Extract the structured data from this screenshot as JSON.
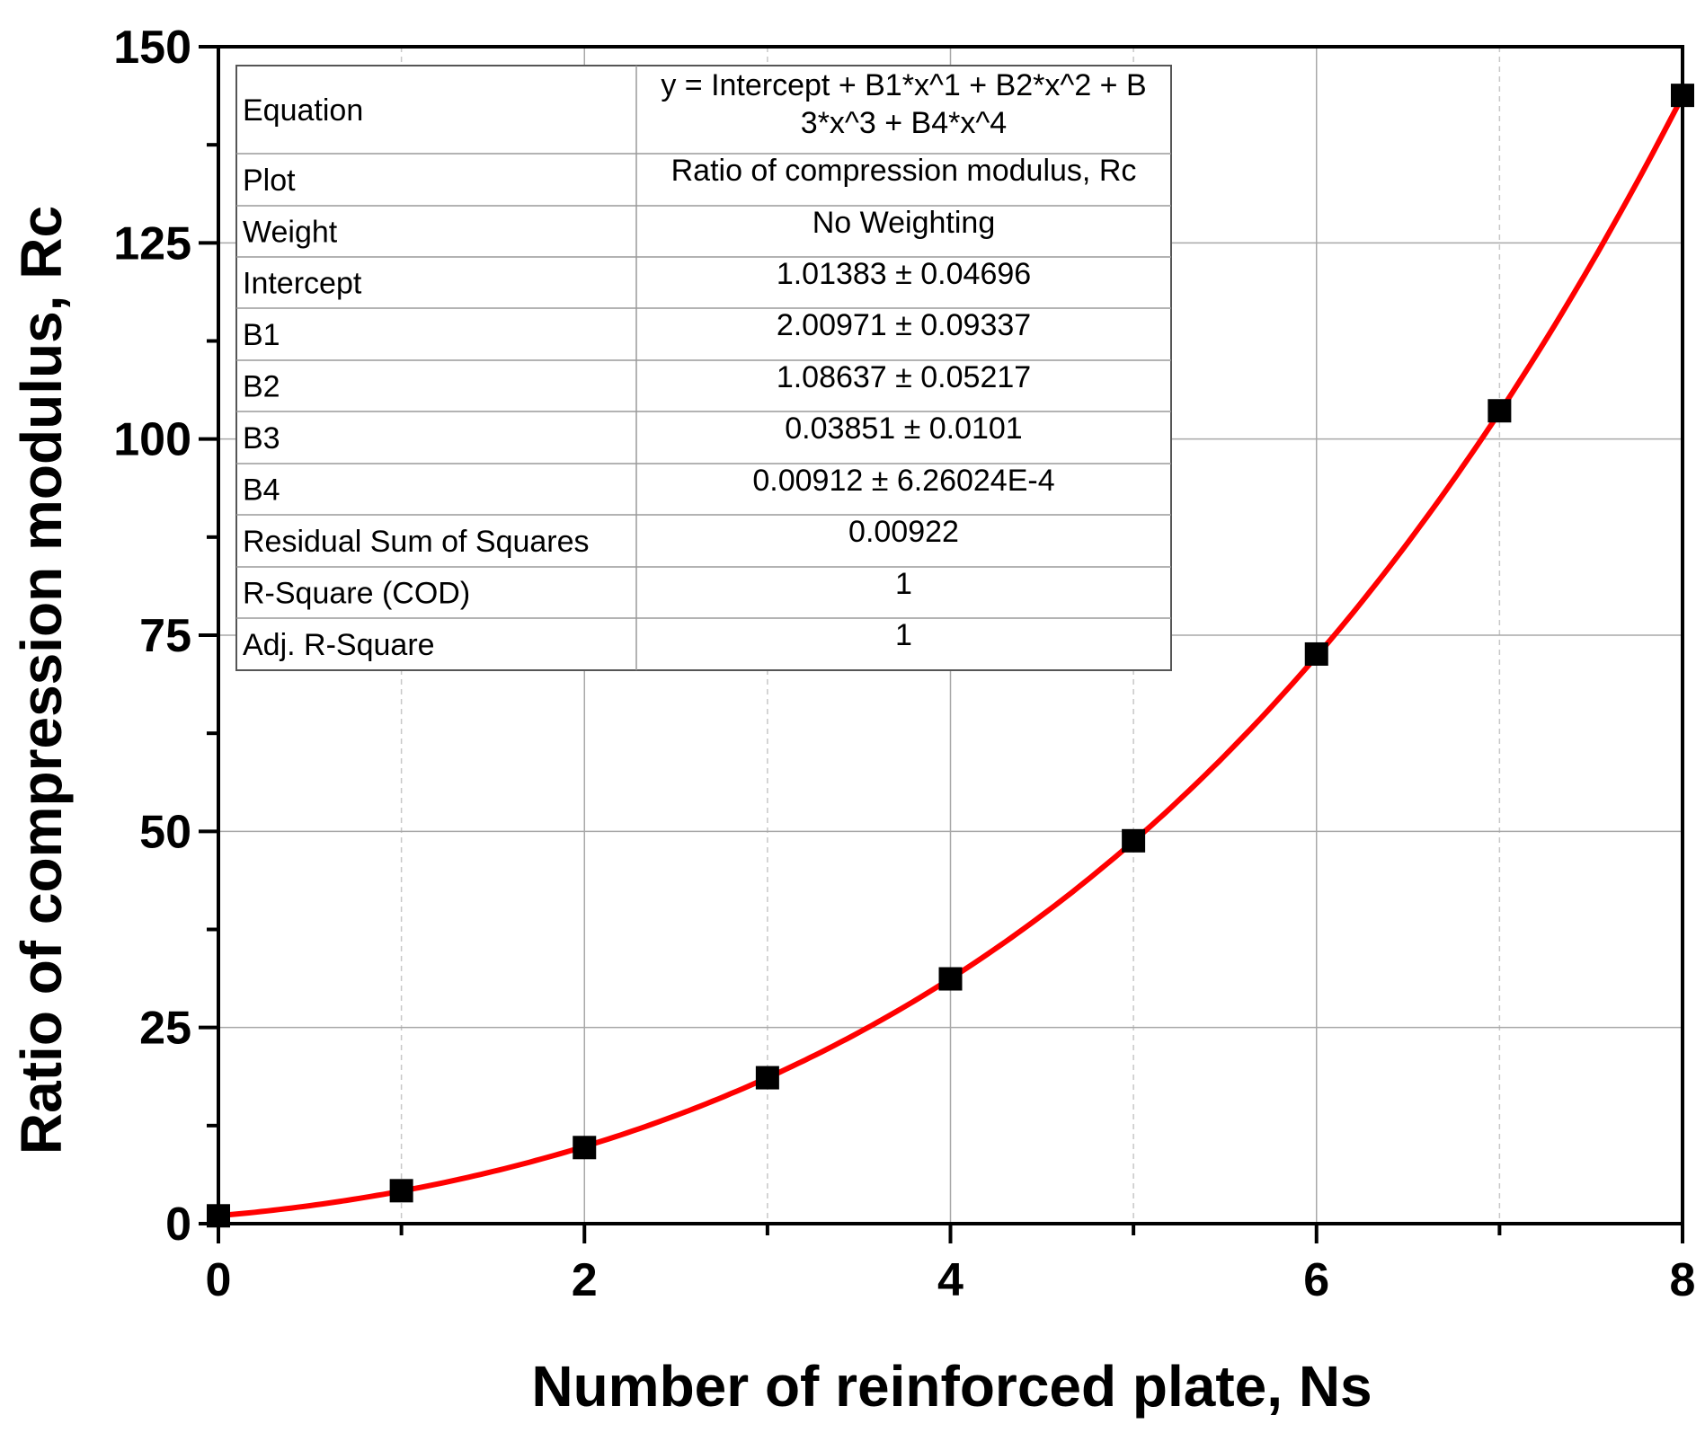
{
  "chart_data": {
    "type": "scatter",
    "title": "",
    "xlabel": "Number of reinforced plate, Ns",
    "ylabel": "Ratio of compression modulus, Rc",
    "xlim": [
      0,
      8
    ],
    "ylim": [
      0,
      150
    ],
    "xticks": [
      0,
      2,
      4,
      6,
      8
    ],
    "yticks": [
      0,
      25,
      50,
      75,
      100,
      125,
      150
    ],
    "grid": true,
    "series": [
      {
        "name": "Ratio of compression modulus, Rc",
        "marker": "square",
        "color": "#000000",
        "x": [
          0,
          1,
          2,
          3,
          4,
          5,
          6,
          7,
          8
        ],
        "y": [
          1.0,
          4.2,
          9.7,
          18.6,
          31.2,
          48.8,
          72.6,
          103.6,
          143.8
        ]
      }
    ],
    "fit": {
      "type": "polynomial",
      "order": 4,
      "color": "#ff0000",
      "coefficients": [
        1.01383,
        2.00971,
        1.08637,
        0.03851,
        0.00912
      ]
    },
    "fit_table": {
      "rows": [
        {
          "label": "Equation",
          "value_lines": [
            "y = Intercept + B1*x^1 + B2*x^2 + B",
            "3*x^3 + B4*x^4"
          ]
        },
        {
          "label": "Plot",
          "value_lines": [
            "Ratio of compression modulus, Rc"
          ]
        },
        {
          "label": "Weight",
          "value_lines": [
            "No Weighting"
          ]
        },
        {
          "label": "Intercept",
          "value_lines": [
            "1.01383 ± 0.04696"
          ]
        },
        {
          "label": "B1",
          "value_lines": [
            "2.00971 ± 0.09337"
          ]
        },
        {
          "label": "B2",
          "value_lines": [
            "1.08637 ± 0.05217"
          ]
        },
        {
          "label": "B3",
          "value_lines": [
            "0.03851 ± 0.0101"
          ]
        },
        {
          "label": "B4",
          "value_lines": [
            "0.00912 ± 6.26024E-4"
          ]
        },
        {
          "label": "Residual Sum of Squares",
          "value_lines": [
            "0.00922"
          ]
        },
        {
          "label": "R-Square (COD)",
          "value_lines": [
            "1"
          ]
        },
        {
          "label": "Adj. R-Square",
          "value_lines": [
            "1"
          ]
        }
      ]
    }
  }
}
